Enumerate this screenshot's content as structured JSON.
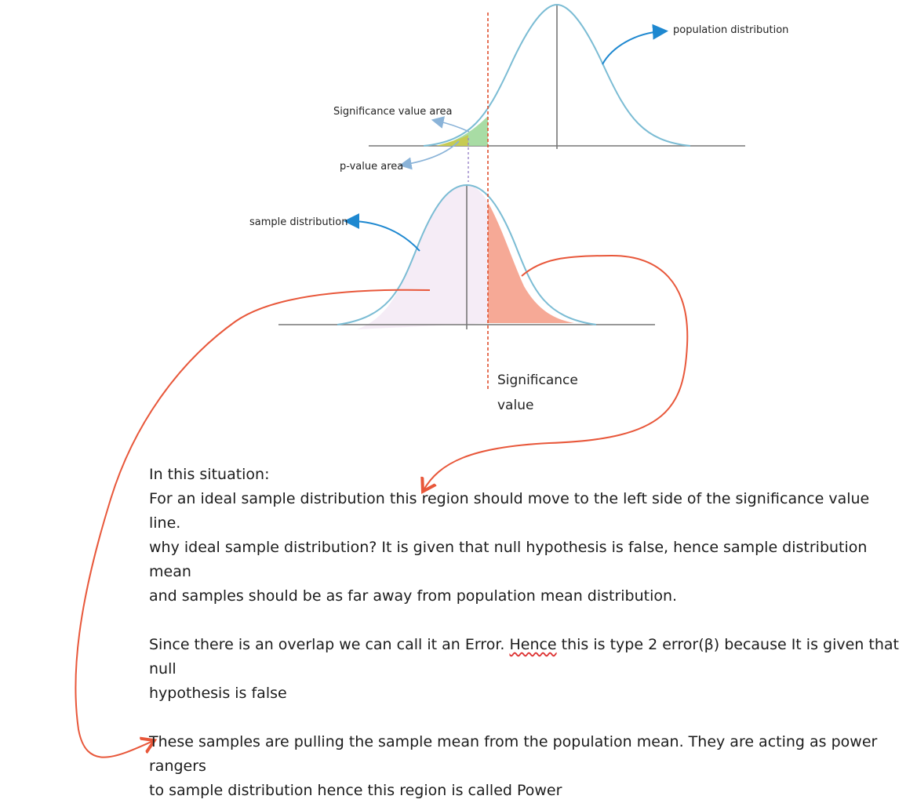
{
  "labels": {
    "population_distribution": "population distribution",
    "significance_value_area": "Significance value area",
    "p_value_area": "p-value area",
    "sample_distribution": "sample distribution",
    "significance_value_line1": "Significance",
    "significance_value_line2": "value"
  },
  "notes": {
    "heading": "In this situation:",
    "line1": "For an ideal sample distribution this region should move to the left side of the significance value line.",
    "line2": "why ideal sample distribution? It is given that null hypothesis is false, hence sample distribution mean",
    "line3": "and samples should be as far away from population mean distribution.",
    "error_pre": "Since there is an overlap we can call it an Error. ",
    "error_hence": "Hence",
    "error_post": " this is type 2 error(β) because It is given that null",
    "error_line2": "hypothesis is false",
    "power_line1": "These samples are pulling the sample mean from the population mean. They are acting as power rangers",
    "power_line2": "to sample distribution hence this region is called Power"
  },
  "colors": {
    "curve": "#7bbcd4",
    "axis": "#777777",
    "significance_line": "#e0502e",
    "power_fill": "#f6a996",
    "sample_fill": "#f5ecf6",
    "green_area": "#9fd89a",
    "yellow_area": "#c9c94a",
    "blue_arrow": "#1e88d0",
    "red_arrow": "#e8573a"
  }
}
